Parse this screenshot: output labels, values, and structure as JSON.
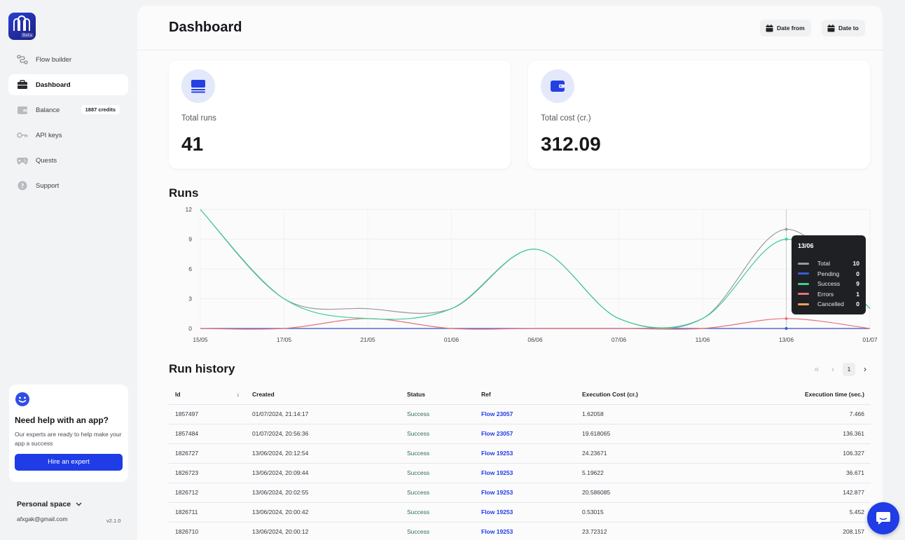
{
  "sidebar": {
    "logo_badge": "Beta",
    "items": [
      {
        "label": "Flow builder",
        "icon": "flow-icon"
      },
      {
        "label": "Dashboard",
        "icon": "briefcase-icon",
        "active": true
      },
      {
        "label": "Balance",
        "icon": "wallet-icon",
        "badge": "1887 credits"
      },
      {
        "label": "API keys",
        "icon": "key-icon"
      },
      {
        "label": "Quests",
        "icon": "gamepad-icon"
      },
      {
        "label": "Support",
        "icon": "help-icon"
      }
    ],
    "help": {
      "title": "Need help with an app?",
      "text": "Our experts are ready to help make your app a success",
      "button": "Hire an expert"
    },
    "space": "Personal space",
    "email": "afxgak@gmail.com",
    "version": "v2.1.0"
  },
  "header": {
    "title": "Dashboard",
    "date_from": "Date from",
    "date_to": "Date to"
  },
  "stats": {
    "total_runs_label": "Total runs",
    "total_runs": "41",
    "total_cost_label": "Total cost (cr.)",
    "total_cost": "312.09"
  },
  "runs_title": "Runs",
  "chart_data": {
    "type": "line",
    "x": [
      "15/05",
      "17/05",
      "21/05",
      "01/06",
      "06/06",
      "07/06",
      "11/06",
      "13/06",
      "01/07"
    ],
    "yticks": [
      0,
      3,
      6,
      9,
      12
    ],
    "ylim": [
      0,
      12
    ],
    "series": [
      {
        "name": "Total",
        "color": "#9a9a9a",
        "values": [
          12,
          3,
          2,
          2,
          8,
          1,
          1,
          10,
          2
        ]
      },
      {
        "name": "Pending",
        "color": "#3b5bdb",
        "values": [
          0,
          0,
          0,
          0,
          0,
          0,
          0,
          0,
          0
        ]
      },
      {
        "name": "Success",
        "color": "#3ccf91",
        "values": [
          12,
          3,
          1,
          2,
          8,
          1,
          1,
          9,
          2
        ]
      },
      {
        "name": "Errors",
        "color": "#e5737a",
        "values": [
          0,
          0,
          1,
          0,
          0,
          0,
          0,
          1,
          0
        ]
      },
      {
        "name": "Cancelled",
        "color": "#f0a060",
        "values": [
          0,
          0,
          0,
          0,
          0,
          0,
          0,
          0,
          0
        ]
      }
    ],
    "tooltip": {
      "date": "13/06",
      "rows": [
        {
          "name": "Total",
          "value": "10",
          "color": "#9a9a9a"
        },
        {
          "name": "Pending",
          "value": "0",
          "color": "#3b5bdb"
        },
        {
          "name": "Success",
          "value": "9",
          "color": "#3ccf91"
        },
        {
          "name": "Errors",
          "value": "1",
          "color": "#e5737a"
        },
        {
          "name": "Cancelled",
          "value": "0",
          "color": "#f0a060"
        }
      ]
    }
  },
  "history": {
    "title": "Run history",
    "page": "1",
    "columns": [
      "Id",
      "Created",
      "Status",
      "Ref",
      "Execution Cost (cr.)",
      "Execution time (sec.)"
    ],
    "rows": [
      [
        "1857497",
        "01/07/2024, 21:14:17",
        "Success",
        "Flow 23057",
        "1.62058",
        "7.466"
      ],
      [
        "1857484",
        "01/07/2024, 20:56:36",
        "Success",
        "Flow 23057",
        "19.618065",
        "136.361"
      ],
      [
        "1826727",
        "13/06/2024, 20:12:54",
        "Success",
        "Flow 19253",
        "24.23671",
        "106.327"
      ],
      [
        "1826723",
        "13/06/2024, 20:09:44",
        "Success",
        "Flow 19253",
        "5.19622",
        "36.671"
      ],
      [
        "1826712",
        "13/06/2024, 20:02:55",
        "Success",
        "Flow 19253",
        "20.586085",
        "142.877"
      ],
      [
        "1826711",
        "13/06/2024, 20:00:42",
        "Success",
        "Flow 19253",
        "0.53015",
        "5.452"
      ],
      [
        "1826710",
        "13/06/2024, 20:00:12",
        "Success",
        "Flow 19253",
        "23.72312",
        "208.157"
      ]
    ]
  }
}
